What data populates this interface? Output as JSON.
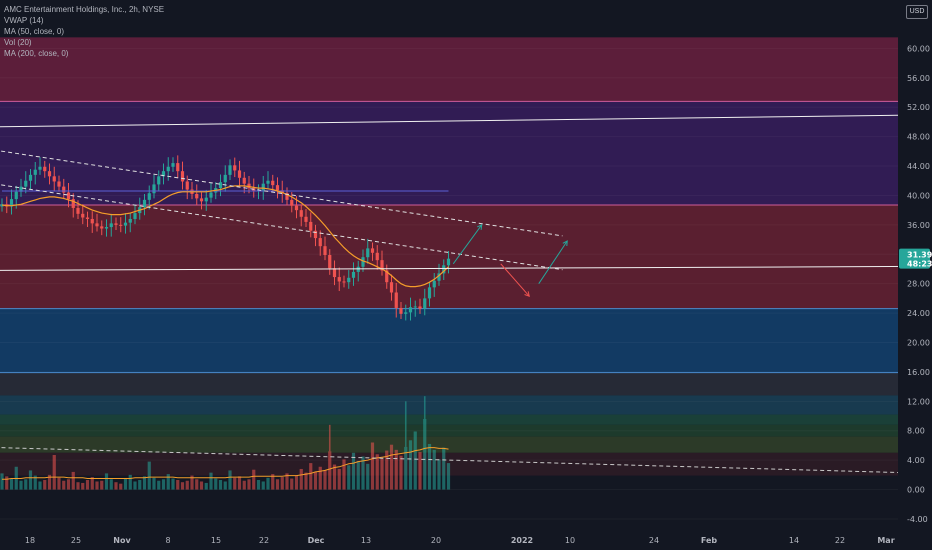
{
  "header": {
    "title": "AMC Entertainment Holdings, Inc., 2h, NYSE",
    "indicators": [
      "VWAP (14)",
      "MA (50, close, 0)",
      "Vol (20)",
      "MA (200, close, 0)"
    ],
    "currency": "USD"
  },
  "price_tags": {
    "last": "31.39",
    "countdown": "48:23"
  },
  "colors": {
    "background": "#131722",
    "up": "#26a69a",
    "down": "#ef5350",
    "ma": "#f59d2a",
    "vwap": "#5a5fd6",
    "white_line": "#e8e8e8",
    "accent_tag": "#26a69a"
  },
  "chart_data": {
    "type": "candlestick",
    "symbol": "AMC",
    "interval": "2h",
    "exchange": "NYSE",
    "y_axis": {
      "ticks": [
        "60.00",
        "56.00",
        "52.00",
        "48.00",
        "44.00",
        "40.00",
        "36.00",
        "32.00",
        "28.00",
        "24.00",
        "20.00",
        "16.00",
        "12.00",
        "8.00",
        "4.00",
        "0.00",
        "-4.00"
      ],
      "range": [
        -5.5,
        62.5
      ]
    },
    "x_axis": {
      "labels": [
        "18",
        "25",
        "Nov",
        "8",
        "15",
        "22",
        "Dec",
        "13",
        "20",
        "2022",
        "10",
        "24",
        "Feb",
        "14",
        "22",
        "Mar"
      ],
      "bold_labels": [
        "Nov",
        "Dec",
        "2022",
        "Feb",
        "Mar"
      ]
    },
    "price_zones": [
      {
        "from": 52.8,
        "to": 61.5,
        "color": "#5c1e3a"
      },
      {
        "from": 38.7,
        "to": 52.8,
        "color": "#311c54"
      },
      {
        "from": 24.6,
        "to": 38.7,
        "color": "#5a1f30"
      },
      {
        "from": 15.9,
        "to": 24.6,
        "color": "#123a63"
      },
      {
        "from": 12.8,
        "to": 15.9,
        "color": "#262a36"
      },
      {
        "from": 10.2,
        "to": 12.8,
        "color": "#183a4f"
      },
      {
        "from": 8.8,
        "to": 10.2,
        "color": "#1a4038"
      },
      {
        "from": 7.2,
        "to": 8.8,
        "color": "#1d3a2c"
      },
      {
        "from": 5.0,
        "to": 7.2,
        "color": "#2c3a28"
      },
      {
        "from": 1.9,
        "to": 5.0,
        "color": "#2a1b25"
      }
    ],
    "close_series": [
      38.8,
      38.5,
      39.5,
      40.5,
      41.2,
      42.0,
      42.8,
      43.5,
      43.9,
      43.3,
      42.6,
      41.9,
      41.2,
      40.4,
      39.5,
      38.3,
      37.5,
      37.0,
      36.8,
      36.2,
      35.8,
      35.5,
      35.7,
      36.2,
      36.0,
      35.9,
      36.3,
      36.8,
      37.6,
      38.4,
      39.4,
      40.3,
      41.5,
      42.6,
      43.3,
      43.9,
      44.4,
      43.3,
      41.9,
      40.8,
      40.2,
      39.6,
      39.2,
      39.7,
      40.4,
      41.0,
      41.8,
      42.8,
      44.1,
      43.4,
      42.4,
      41.6,
      41.0,
      40.6,
      40.7,
      41.6,
      42.0,
      41.4,
      40.7,
      40.3,
      39.4,
      38.6,
      38.0,
      37.1,
      36.4,
      35.2,
      34.2,
      33.1,
      31.9,
      30.1,
      28.9,
      28.3,
      28.2,
      28.8,
      29.6,
      30.3,
      31.6,
      32.8,
      32.2,
      31.2,
      29.8,
      28.2,
      26.8,
      24.7,
      23.9,
      24.1,
      24.8,
      24.9,
      24.6,
      26.0,
      27.5,
      28.4,
      29.4,
      30.5,
      31.4
    ],
    "ma50": [
      38.7,
      38.6,
      38.6,
      38.7,
      38.8,
      39.0,
      39.2,
      39.4,
      39.6,
      39.7,
      39.8,
      39.8,
      39.7,
      39.6,
      39.4,
      39.2,
      38.9,
      38.6,
      38.3,
      38.0,
      37.8,
      37.6,
      37.5,
      37.4,
      37.4,
      37.4,
      37.5,
      37.6,
      37.8,
      38.0,
      38.2,
      38.5,
      38.8,
      39.1,
      39.5,
      39.9,
      40.2,
      40.4,
      40.5,
      40.5,
      40.5,
      40.5,
      40.5,
      40.5,
      40.6,
      40.7,
      40.8,
      41.0,
      41.2,
      41.3,
      41.3,
      41.3,
      41.2,
      41.1,
      41.0,
      41.0,
      40.9,
      40.8,
      40.6,
      40.4,
      40.1,
      39.8,
      39.4,
      39.0,
      38.5,
      37.9,
      37.3,
      36.6,
      35.9,
      35.1,
      34.3,
      33.6,
      32.9,
      32.3,
      31.8,
      31.4,
      31.1,
      30.9,
      30.6,
      30.3,
      30.0,
      29.6,
      29.1,
      28.5,
      28.0,
      27.7,
      27.6,
      27.6,
      27.7,
      27.9,
      28.2,
      28.6,
      29.1,
      29.7,
      30.3
    ],
    "vwap_level": 40.6,
    "volume": [
      2.2,
      1.8,
      1.5,
      3.1,
      1.2,
      1.4,
      2.6,
      1.9,
      1.1,
      1.3,
      2.0,
      4.7,
      1.6,
      1.2,
      1.4,
      2.4,
      1.0,
      0.9,
      1.3,
      1.7,
      1.1,
      1.2,
      2.2,
      1.4,
      1.0,
      0.8,
      1.5,
      2.0,
      1.1,
      1.3,
      1.8,
      3.8,
      1.6,
      1.2,
      1.4,
      2.1,
      1.5,
      1.3,
      1.0,
      1.2,
      1.9,
      1.4,
      1.1,
      0.9,
      2.3,
      1.5,
      1.3,
      1.1,
      2.6,
      1.6,
      1.8,
      1.2,
      1.4,
      2.7,
      1.3,
      1.1,
      1.6,
      2.1,
      1.4,
      1.7,
      2.2,
      1.5,
      1.9,
      2.8,
      2.3,
      3.6,
      2.4,
      3.1,
      2.6,
      5.2,
      3.4,
      2.8,
      4.1,
      3.3,
      5.0,
      3.9,
      4.5,
      3.5,
      6.4,
      4.8,
      4.2,
      5.3,
      6.1,
      5.4,
      4.6,
      5.8,
      6.7,
      7.9,
      5.1,
      9.6,
      6.2,
      5.4,
      4.1,
      5.7,
      3.6
    ],
    "volume_spikes": [
      {
        "index": 69,
        "value": 8.8
      },
      {
        "index": 85,
        "value": 12.0
      },
      {
        "index": 89,
        "value": 12.7
      }
    ],
    "volume_ma": [
      1.4,
      1.4,
      1.5,
      1.5,
      1.5,
      1.6,
      1.6,
      1.6,
      1.6,
      1.6,
      1.7,
      1.7,
      1.7,
      1.7,
      1.6,
      1.6,
      1.6,
      1.6,
      1.5,
      1.5,
      1.5,
      1.5,
      1.5,
      1.5,
      1.5,
      1.5,
      1.5,
      1.5,
      1.6,
      1.6,
      1.6,
      1.7,
      1.7,
      1.7,
      1.7,
      1.7,
      1.7,
      1.6,
      1.6,
      1.6,
      1.6,
      1.6,
      1.6,
      1.6,
      1.6,
      1.6,
      1.6,
      1.6,
      1.7,
      1.7,
      1.7,
      1.7,
      1.7,
      1.8,
      1.8,
      1.8,
      1.8,
      1.8,
      1.8,
      1.8,
      1.9,
      1.9,
      1.9,
      2.0,
      2.1,
      2.2,
      2.4,
      2.5,
      2.6,
      2.8,
      3.0,
      3.1,
      3.3,
      3.5,
      3.6,
      3.8,
      3.9,
      4.0,
      4.2,
      4.3,
      4.4,
      4.5,
      4.7,
      4.8,
      4.9,
      5.0,
      5.1,
      5.3,
      5.4,
      5.6,
      5.7,
      5.7,
      5.6,
      5.6,
      5.5
    ],
    "horizontal_lines": [
      {
        "value": 52.8,
        "color": "#d05c99"
      },
      {
        "value": 38.7,
        "color": "#d05c99"
      },
      {
        "value": 24.6,
        "color": "#4a8bcc"
      },
      {
        "value": 15.9,
        "color": "#4a8bcc"
      }
    ],
    "trendlines": [
      {
        "from": {
          "x": -6,
          "y": 49.3
        },
        "to": {
          "x": 212,
          "y": 51.1
        },
        "color": "#f0f0f0",
        "style": "solid"
      },
      {
        "from": {
          "x": -6,
          "y": 29.8
        },
        "to": {
          "x": 212,
          "y": 30.4
        },
        "color": "#f0f0f0",
        "style": "solid"
      },
      {
        "from": {
          "x": -6,
          "y": 46.6
        },
        "to": {
          "x": 118,
          "y": 34.5
        },
        "color": "#e0e0e0",
        "style": "dashed"
      },
      {
        "from": {
          "x": -6,
          "y": 42.0
        },
        "to": {
          "x": 118,
          "y": 29.9
        },
        "color": "#e0e0e0",
        "style": "dashed"
      },
      {
        "from": {
          "x": -6,
          "y": 5.8
        },
        "to": {
          "x": 212,
          "y": 1.9
        },
        "color": "#c9c9c9",
        "style": "dashed"
      }
    ],
    "projection_arrows": [
      {
        "from": {
          "x": 95,
          "y": 30.7
        },
        "to": {
          "x": 101,
          "y": 36.0
        },
        "color": "#26a69a"
      },
      {
        "from": {
          "x": 105,
          "y": 30.7
        },
        "to": {
          "x": 111,
          "y": 26.3
        },
        "color": "#ef5350"
      },
      {
        "from": {
          "x": 113,
          "y": 28.0
        },
        "to": {
          "x": 119,
          "y": 33.8
        },
        "color": "#26a69a"
      }
    ]
  }
}
